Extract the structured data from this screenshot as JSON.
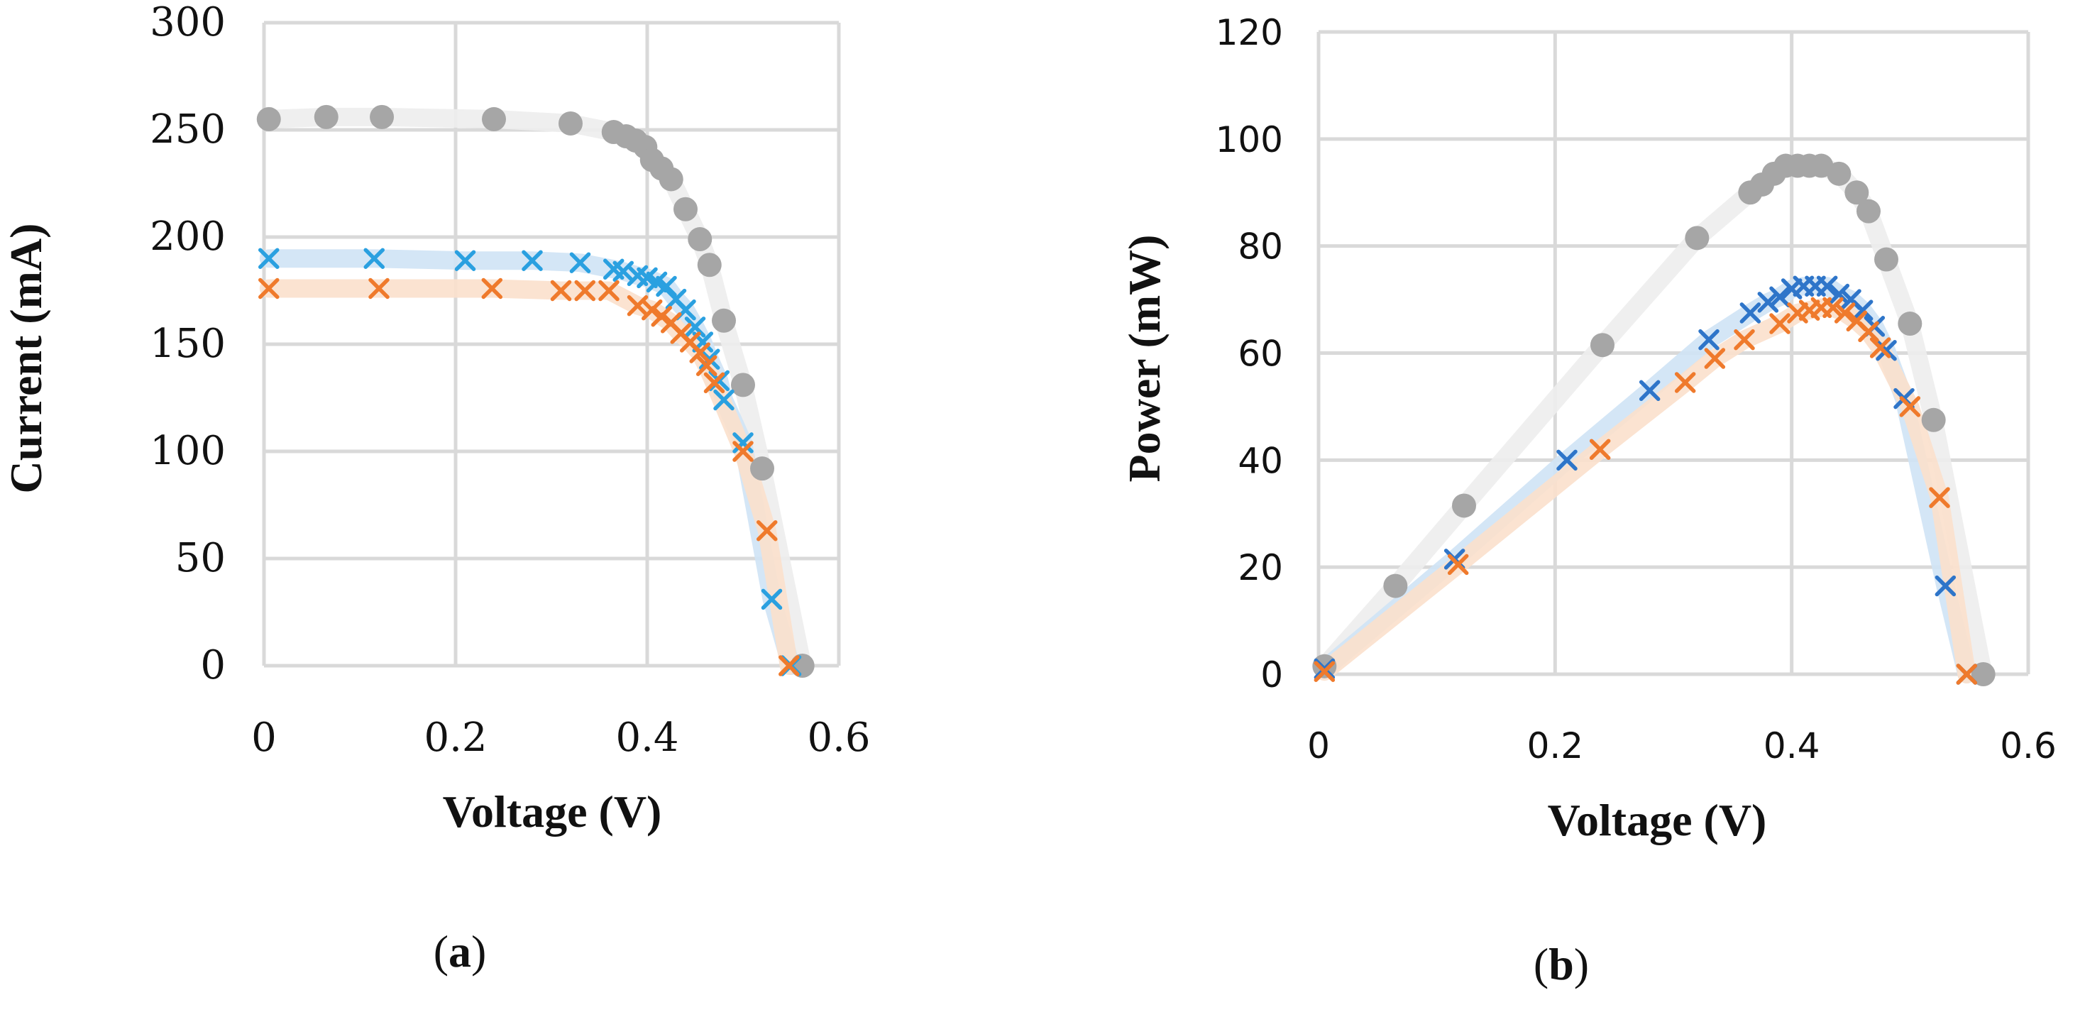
{
  "figure": {
    "panel_a_label": {
      "open": "(",
      "letter": "a",
      "close": ")"
    },
    "panel_b_label": {
      "open": "(",
      "letter": "b",
      "close": ")"
    }
  },
  "colors": {
    "gray": "#a6a6a6",
    "gray_band": "#ededed",
    "blue": "#2e75c9",
    "blue_light": "#2aa0e0",
    "blue_band": "#cfe3f5",
    "orange": "#ef7a2c",
    "orange_band": "#fbe0cc",
    "grid": "#d9d9d9"
  },
  "chart_data": [
    {
      "type": "scatter",
      "title": "",
      "xlabel": "Voltage (V)",
      "ylabel": "Current (mA)",
      "xlim": [
        0,
        0.6
      ],
      "ylim": [
        0,
        300
      ],
      "xticks": [
        0,
        0.2,
        0.4,
        0.6
      ],
      "xtick_labels": [
        "0",
        "0.2",
        "0.4",
        "0.6"
      ],
      "yticks": [
        0,
        50,
        100,
        150,
        200,
        250,
        300
      ],
      "ytick_labels": [
        "0",
        "50",
        "100",
        "150",
        "200",
        "250",
        "300"
      ],
      "grid": true,
      "legend": "none",
      "series": [
        {
          "name": "gray (circles)",
          "marker": "circle",
          "color": "gray",
          "x": [
            0.005,
            0.065,
            0.123,
            0.24,
            0.32,
            0.365,
            0.378,
            0.388,
            0.398,
            0.405,
            0.415,
            0.425,
            0.44,
            0.455,
            0.465,
            0.48,
            0.5,
            0.52,
            0.562
          ],
          "y": [
            255,
            256,
            256,
            255,
            253,
            249,
            247,
            245,
            242,
            236,
            232,
            227,
            213,
            199,
            187,
            161,
            131,
            92,
            0
          ]
        },
        {
          "name": "blue (x)",
          "marker": "x",
          "color": "blue_light",
          "x": [
            0.005,
            0.115,
            0.21,
            0.28,
            0.33,
            0.365,
            0.375,
            0.39,
            0.4,
            0.41,
            0.42,
            0.43,
            0.44,
            0.45,
            0.458,
            0.465,
            0.475,
            0.48,
            0.5,
            0.53,
            0.55
          ],
          "y": [
            190,
            190,
            189,
            189,
            188,
            185,
            184,
            182,
            181,
            179,
            177,
            171,
            166,
            158,
            151,
            143,
            133,
            124,
            104,
            31,
            0
          ]
        },
        {
          "name": "orange (x)",
          "marker": "x",
          "color": "orange",
          "x": [
            0.005,
            0.12,
            0.238,
            0.31,
            0.335,
            0.36,
            0.39,
            0.405,
            0.415,
            0.425,
            0.435,
            0.445,
            0.455,
            0.462,
            0.47,
            0.5,
            0.525,
            0.548
          ],
          "y": [
            176,
            176,
            176,
            175,
            175,
            175,
            168,
            166,
            163,
            160,
            155,
            151,
            146,
            140,
            132,
            100,
            63,
            0
          ]
        }
      ]
    },
    {
      "type": "scatter",
      "title": "",
      "xlabel": "Voltage (V)",
      "ylabel": "Power (mW)",
      "xlim": [
        0,
        0.6
      ],
      "ylim": [
        0,
        120
      ],
      "xticks": [
        0,
        0.2,
        0.4,
        0.6
      ],
      "xtick_labels": [
        "0",
        "0.2",
        "0.4",
        "0.6"
      ],
      "yticks": [
        0,
        20,
        40,
        60,
        80,
        100,
        120
      ],
      "ytick_labels": [
        "0",
        "20",
        "40",
        "60",
        "80",
        "100",
        "120"
      ],
      "grid": true,
      "legend": "none",
      "series": [
        {
          "name": "gray (circles)",
          "marker": "circle",
          "color": "gray",
          "x": [
            0.005,
            0.065,
            0.123,
            0.24,
            0.32,
            0.365,
            0.375,
            0.385,
            0.395,
            0.405,
            0.415,
            0.425,
            0.44,
            0.455,
            0.465,
            0.48,
            0.5,
            0.52,
            0.562
          ],
          "y": [
            1.5,
            16.5,
            31.5,
            61.5,
            81.5,
            90,
            91.5,
            93.5,
            95,
            95,
            95,
            95,
            93.5,
            90,
            86.5,
            77.5,
            65.5,
            47.5,
            0
          ]
        },
        {
          "name": "blue (x)",
          "marker": "x",
          "color": "blue",
          "x": [
            0.005,
            0.115,
            0.21,
            0.28,
            0.33,
            0.365,
            0.38,
            0.39,
            0.4,
            0.41,
            0.42,
            0.43,
            0.44,
            0.45,
            0.46,
            0.47,
            0.48,
            0.495,
            0.53,
            0.548
          ],
          "y": [
            1,
            21.5,
            40,
            53,
            62.5,
            67.5,
            69.5,
            70.5,
            72,
            72.5,
            72.5,
            72.5,
            71,
            70,
            68,
            65,
            60.5,
            51.5,
            16.5,
            0
          ]
        },
        {
          "name": "orange (x)",
          "marker": "x",
          "color": "orange",
          "x": [
            0.005,
            0.118,
            0.238,
            0.31,
            0.335,
            0.36,
            0.39,
            0.405,
            0.415,
            0.425,
            0.435,
            0.445,
            0.455,
            0.465,
            0.475,
            0.5,
            0.525,
            0.548
          ],
          "y": [
            0.5,
            20.5,
            42,
            54.5,
            59,
            62.5,
            65.5,
            67.5,
            68,
            68.5,
            68.5,
            67.5,
            66,
            64,
            61,
            50,
            33,
            0
          ]
        }
      ]
    }
  ]
}
